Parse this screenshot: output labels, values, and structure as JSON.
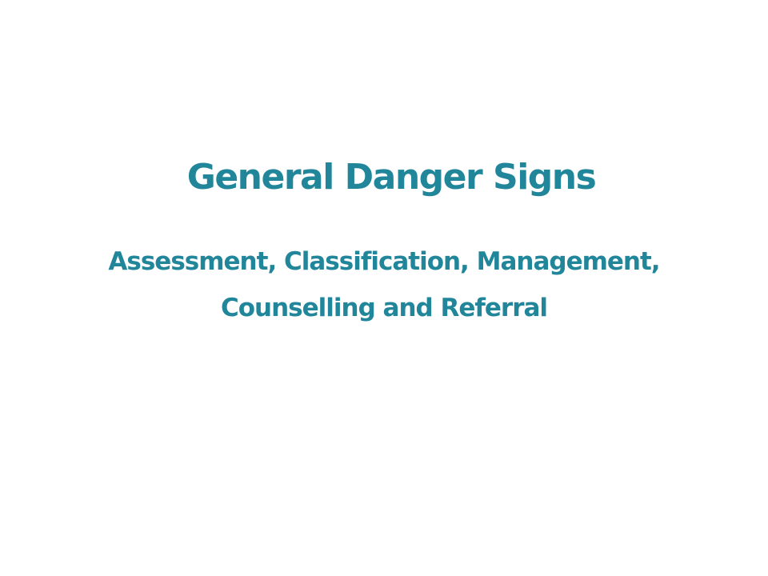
{
  "slide": {
    "title": "General Danger Signs",
    "subtitle_line1": "Assessment, Classification, Management,",
    "subtitle_line2": "Counselling and Referral",
    "text_color": "#21869a",
    "background_color": "#ffffff"
  }
}
